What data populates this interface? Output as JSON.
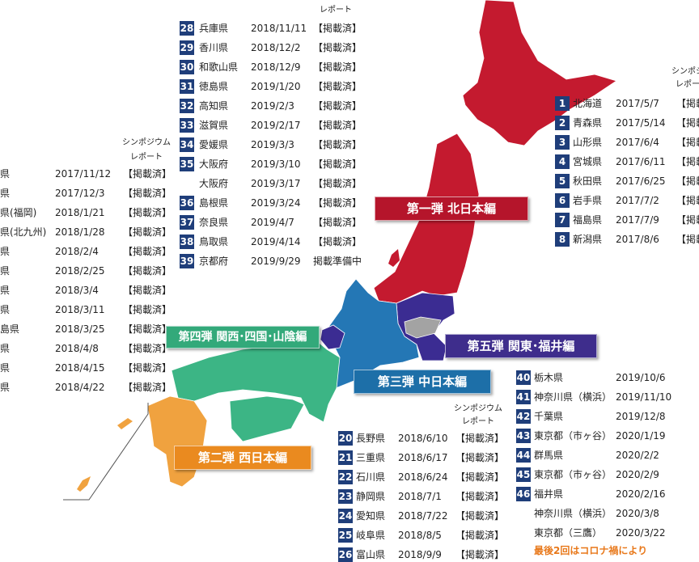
{
  "banners": {
    "north": "第一弾 北日本編",
    "west": "第二弾 西日本編",
    "central": "第三弾 中日本編",
    "kansai": "第四弾 関西･四国･山陰編",
    "kanto": "第五弾 関東･福井編"
  },
  "tables": [
    {
      "header": [
        "レポート"
      ],
      "rows": [
        {
          "num": "28",
          "pref": "兵庫県",
          "date": "2018/11/11",
          "status": "【掲載済】"
        },
        {
          "num": "29",
          "pref": "香川県",
          "date": "2018/12/2",
          "status": "【掲載済】"
        },
        {
          "num": "30",
          "pref": "和歌山県",
          "date": "2018/12/9",
          "status": "【掲載済】"
        },
        {
          "num": "31",
          "pref": "徳島県",
          "date": "2019/1/20",
          "status": "【掲載済】"
        },
        {
          "num": "32",
          "pref": "高知県",
          "date": "2019/2/3",
          "status": "【掲載済】"
        },
        {
          "num": "33",
          "pref": "滋賀県",
          "date": "2019/2/17",
          "status": "【掲載済】"
        },
        {
          "num": "34",
          "pref": "愛媛県",
          "date": "2019/3/3",
          "status": "【掲載済】"
        },
        {
          "num": "35",
          "pref": "大阪府",
          "date": "2019/3/10",
          "status": "【掲載済】"
        },
        {
          "pref": "大阪府",
          "date": "2019/3/17",
          "status": "【掲載済】"
        },
        {
          "num": "36",
          "pref": "島根県",
          "date": "2019/3/24",
          "status": "【掲載済】"
        },
        {
          "num": "37",
          "pref": "奈良県",
          "date": "2019/4/7",
          "status": "【掲載済】"
        },
        {
          "num": "38",
          "pref": "鳥取県",
          "date": "2019/4/14",
          "status": "【掲載済】"
        },
        {
          "num": "39",
          "pref": "京都府",
          "date": "2019/9/29",
          "status": "掲載準備中"
        }
      ]
    },
    {
      "header": [
        "シンポジウム",
        "レポート"
      ],
      "rows": [
        {
          "pref": "県",
          "date": "2017/11/12",
          "status": "【掲載済】"
        },
        {
          "pref": "県",
          "date": "2017/12/3",
          "status": "【掲載済】"
        },
        {
          "pref": "県(福岡)",
          "date": "2018/1/21",
          "status": "【掲載済】"
        },
        {
          "pref": "県(北九州)",
          "date": "2018/1/28",
          "status": "【掲載済】"
        },
        {
          "pref": "県",
          "date": "2018/2/4",
          "status": "【掲載済】"
        },
        {
          "pref": "県",
          "date": "2018/2/25",
          "status": "【掲載済】"
        },
        {
          "pref": "県",
          "date": "2018/3/4",
          "status": "【掲載済】"
        },
        {
          "pref": "県",
          "date": "2018/3/11",
          "status": "【掲載済】"
        },
        {
          "pref": "島県",
          "date": "2018/3/25",
          "status": "【掲載済】"
        },
        {
          "pref": "県",
          "date": "2018/4/8",
          "status": "【掲載済】"
        },
        {
          "pref": "県",
          "date": "2018/4/15",
          "status": "【掲載済】"
        },
        {
          "pref": "県",
          "date": "2018/4/22",
          "status": "【掲載済】"
        }
      ]
    },
    {
      "header": [
        "シンポジ",
        "レポー"
      ],
      "rows": [
        {
          "num": "1",
          "pref": "北海道",
          "date": "2017/5/7",
          "status": "【掲載"
        },
        {
          "num": "2",
          "pref": "青森県",
          "date": "2017/5/14",
          "status": "【掲載"
        },
        {
          "num": "3",
          "pref": "山形県",
          "date": "2017/6/4",
          "status": "【掲載"
        },
        {
          "num": "4",
          "pref": "宮城県",
          "date": "2017/6/11",
          "status": "【掲載"
        },
        {
          "num": "5",
          "pref": "秋田県",
          "date": "2017/6/25",
          "status": "【掲載"
        },
        {
          "num": "6",
          "pref": "岩手県",
          "date": "2017/7/2",
          "status": "【掲載"
        },
        {
          "num": "7",
          "pref": "福島県",
          "date": "2017/7/9",
          "status": "【掲載"
        },
        {
          "num": "8",
          "pref": "新潟県",
          "date": "2017/8/6",
          "status": "【掲載"
        }
      ]
    },
    {
      "header": [
        "シンポジウム",
        "レポート"
      ],
      "rows": [
        {
          "num": "20",
          "pref": "長野県",
          "date": "2018/6/10",
          "status": "【掲載済】"
        },
        {
          "num": "21",
          "pref": "三重県",
          "date": "2018/6/17",
          "status": "【掲載済】"
        },
        {
          "num": "22",
          "pref": "石川県",
          "date": "2018/6/24",
          "status": "【掲載済】"
        },
        {
          "num": "23",
          "pref": "静岡県",
          "date": "2018/7/1",
          "status": "【掲載済】"
        },
        {
          "num": "24",
          "pref": "愛知県",
          "date": "2018/7/22",
          "status": "【掲載済】"
        },
        {
          "num": "25",
          "pref": "岐阜県",
          "date": "2018/8/5",
          "status": "【掲載済】"
        },
        {
          "num": "26",
          "pref": "富山県",
          "date": "2018/9/9",
          "status": "【掲載済】"
        }
      ]
    },
    {
      "header": [],
      "rows": [
        {
          "num": "40",
          "pref": "栃木県",
          "date": "2019/10/6"
        },
        {
          "num": "41",
          "pref": "神奈川県（横浜）",
          "date": "2019/11/10"
        },
        {
          "num": "42",
          "pref": "千葉県",
          "date": "2019/12/8"
        },
        {
          "num": "43",
          "pref": "東京都（市ヶ谷）",
          "date": "2020/1/19"
        },
        {
          "num": "44",
          "pref": "群馬県",
          "date": "2020/2/2"
        },
        {
          "num": "45",
          "pref": "東京都（市ヶ谷）",
          "date": "2020/2/9"
        },
        {
          "num": "46",
          "pref": "福井県",
          "date": "2020/2/16"
        },
        {
          "pref": "神奈川県（横浜）",
          "date": "2020/3/8"
        },
        {
          "pref": "東京都（三鷹）",
          "date": "2020/3/22"
        }
      ],
      "note": "最後2回はコロナ禍により"
    }
  ]
}
